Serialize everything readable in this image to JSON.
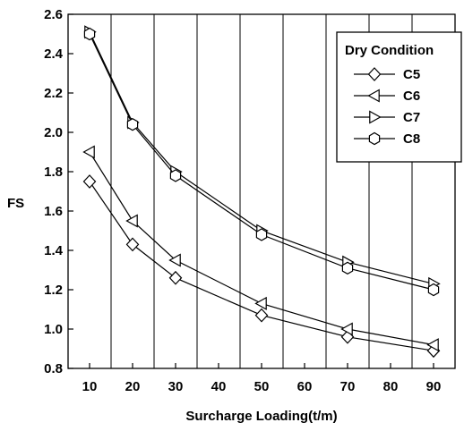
{
  "chart_data": {
    "type": "line",
    "title": "",
    "xlabel": "Surcharge Loading(t/m)",
    "ylabel": "FS",
    "x_tick_labels": [
      "10",
      "20",
      "30",
      "40",
      "50",
      "60",
      "70",
      "80",
      "90"
    ],
    "y_tick_labels": [
      "0.8",
      "1.0",
      "1.2",
      "1.4",
      "1.6",
      "1.8",
      "2.0",
      "2.2",
      "2.4",
      "2.6"
    ],
    "xlim": [
      5,
      95
    ],
    "ylim": [
      0.8,
      2.6
    ],
    "grid": "vertical",
    "legend": {
      "title": "Dry Condition",
      "placement": "top-right"
    },
    "x": [
      10,
      20,
      30,
      50,
      70,
      90
    ],
    "series": [
      {
        "name": "C5",
        "marker": "diamond",
        "values": [
          1.75,
          1.43,
          1.26,
          1.07,
          0.96,
          0.89
        ]
      },
      {
        "name": "C6",
        "marker": "triangle-left",
        "values": [
          1.9,
          1.55,
          1.35,
          1.13,
          1.0,
          0.92
        ]
      },
      {
        "name": "C7",
        "marker": "triangle-right",
        "values": [
          2.51,
          2.05,
          1.8,
          1.5,
          1.34,
          1.23
        ]
      },
      {
        "name": "C8",
        "marker": "hexagon",
        "values": [
          2.5,
          2.04,
          1.78,
          1.48,
          1.31,
          1.2
        ]
      }
    ]
  }
}
